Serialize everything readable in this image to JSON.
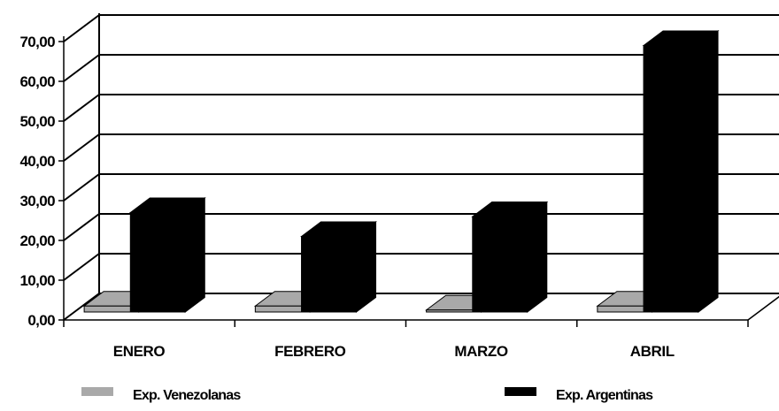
{
  "chart_data": {
    "type": "bar",
    "title": "",
    "xlabel": "",
    "ylabel": "",
    "categories": [
      "ENERO",
      "FEBRERO",
      "MARZO",
      "ABRIL"
    ],
    "series": [
      {
        "name": "Exp. Venezolanas",
        "values": [
          1.5,
          1.5,
          0.5,
          1.5
        ],
        "color": "#a9a9a9"
      },
      {
        "name": "Exp. Argentinas",
        "values": [
          25,
          19,
          24,
          67
        ],
        "color": "#000000"
      }
    ],
    "yticks": [
      "0,00",
      "10,00",
      "20,00",
      "30,00",
      "40,00",
      "50,00",
      "60,00",
      "70,00"
    ],
    "ylim": [
      0,
      70
    ],
    "grid": true,
    "three_d": true,
    "legend_position": "bottom"
  }
}
